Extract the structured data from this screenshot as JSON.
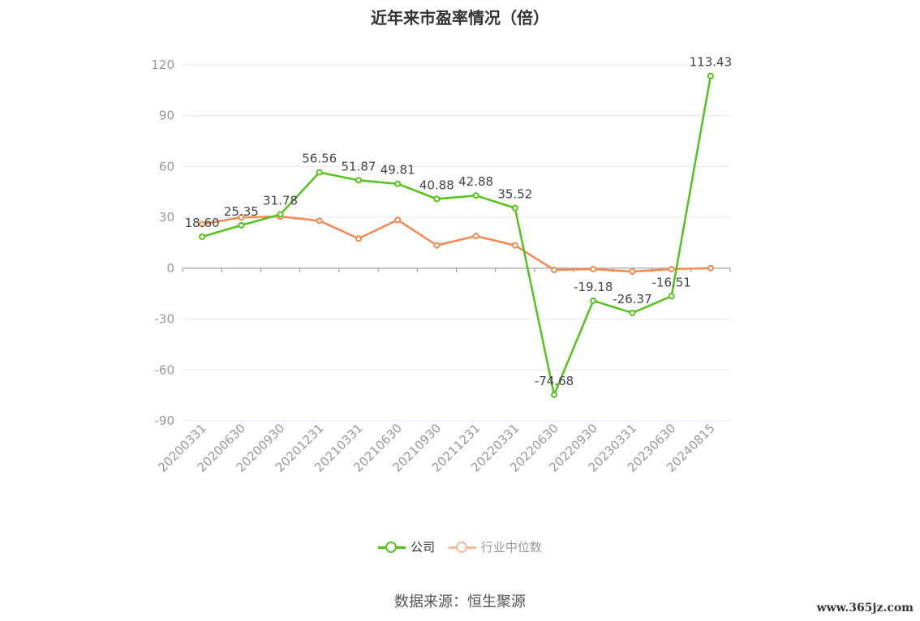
{
  "title": "近年来市盈率情况（倍）",
  "source": "数据来源：恒生聚源",
  "watermark": "www.365jz.com",
  "colors": {
    "company": "#52c41a",
    "industry": "#f4894f",
    "industry_legend": "#f8b89a",
    "grid": "#e4e7f2",
    "axis_label": "#999999"
  },
  "chart_data": {
    "type": "line",
    "categories": [
      "20200331",
      "20200630",
      "20200930",
      "20201231",
      "20210331",
      "20210630",
      "20210930",
      "20211231",
      "20220331",
      "20220630",
      "20220930",
      "20230331",
      "20230630",
      "20240815"
    ],
    "ylim": [
      -90,
      120
    ],
    "yticks": [
      120,
      90,
      60,
      30,
      0,
      -30,
      -60,
      -90
    ],
    "grid": true,
    "legend_position": "bottom",
    "series": [
      {
        "name": "公司",
        "values": [
          18.6,
          25.35,
          31.78,
          56.56,
          51.87,
          49.81,
          40.88,
          42.88,
          35.52,
          -74.68,
          -19.18,
          -26.37,
          -16.51,
          113.43
        ],
        "labels": [
          "18.60",
          "25.35",
          "31.78",
          "56.56",
          "51.87",
          "49.81",
          "40.88",
          "42.88",
          "35.52",
          "-74.68",
          "-19.18",
          "-26.37",
          "-16.51",
          "113.43"
        ]
      },
      {
        "name": "行业中位数",
        "values": [
          26,
          30,
          30.5,
          28,
          17.5,
          28.5,
          13.5,
          19,
          13.5,
          -1,
          -0.5,
          -2,
          -0.5,
          0
        ]
      }
    ]
  }
}
